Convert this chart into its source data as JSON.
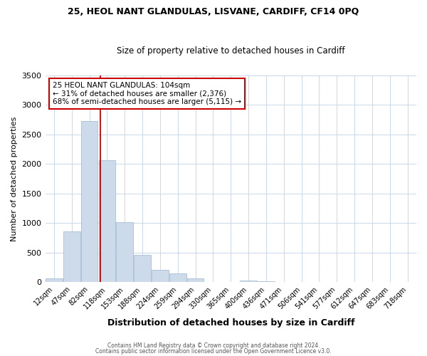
{
  "title": "25, HEOL NANT GLANDULAS, LISVANE, CARDIFF, CF14 0PQ",
  "subtitle": "Size of property relative to detached houses in Cardiff",
  "xlabel": "Distribution of detached houses by size in Cardiff",
  "ylabel": "Number of detached properties",
  "bar_color": "#ccdaea",
  "bar_edge_color": "#a8bfd4",
  "vline_color": "#cc0000",
  "vline_x_bin": 3,
  "categories": [
    "12sqm",
    "47sqm",
    "82sqm",
    "118sqm",
    "153sqm",
    "188sqm",
    "224sqm",
    "259sqm",
    "294sqm",
    "330sqm",
    "365sqm",
    "400sqm",
    "436sqm",
    "471sqm",
    "506sqm",
    "541sqm",
    "577sqm",
    "612sqm",
    "647sqm",
    "683sqm",
    "718sqm"
  ],
  "bin_lefts": [
    0,
    1,
    2,
    3,
    4,
    5,
    6,
    7,
    8,
    9,
    10,
    11,
    12,
    13,
    14,
    15,
    16,
    17,
    18,
    19,
    20
  ],
  "values": [
    55,
    860,
    2730,
    2060,
    1010,
    460,
    210,
    145,
    60,
    0,
    0,
    30,
    15,
    0,
    0,
    0,
    0,
    0,
    0,
    0,
    0
  ],
  "ylim": [
    0,
    3500
  ],
  "yticks": [
    0,
    500,
    1000,
    1500,
    2000,
    2500,
    3000,
    3500
  ],
  "annotation_title": "25 HEOL NANT GLANDULAS: 104sqm",
  "annotation_line1": "← 31% of detached houses are smaller (2,376)",
  "annotation_line2": "68% of semi-detached houses are larger (5,115) →",
  "annotation_box_color": "#ffffff",
  "annotation_box_edge": "#cc0000",
  "footer1": "Contains HM Land Registry data © Crown copyright and database right 2024.",
  "footer2": "Contains public sector information licensed under the Open Government Licence v3.0.",
  "background_color": "#ffffff",
  "grid_color": "#ccd8e8"
}
